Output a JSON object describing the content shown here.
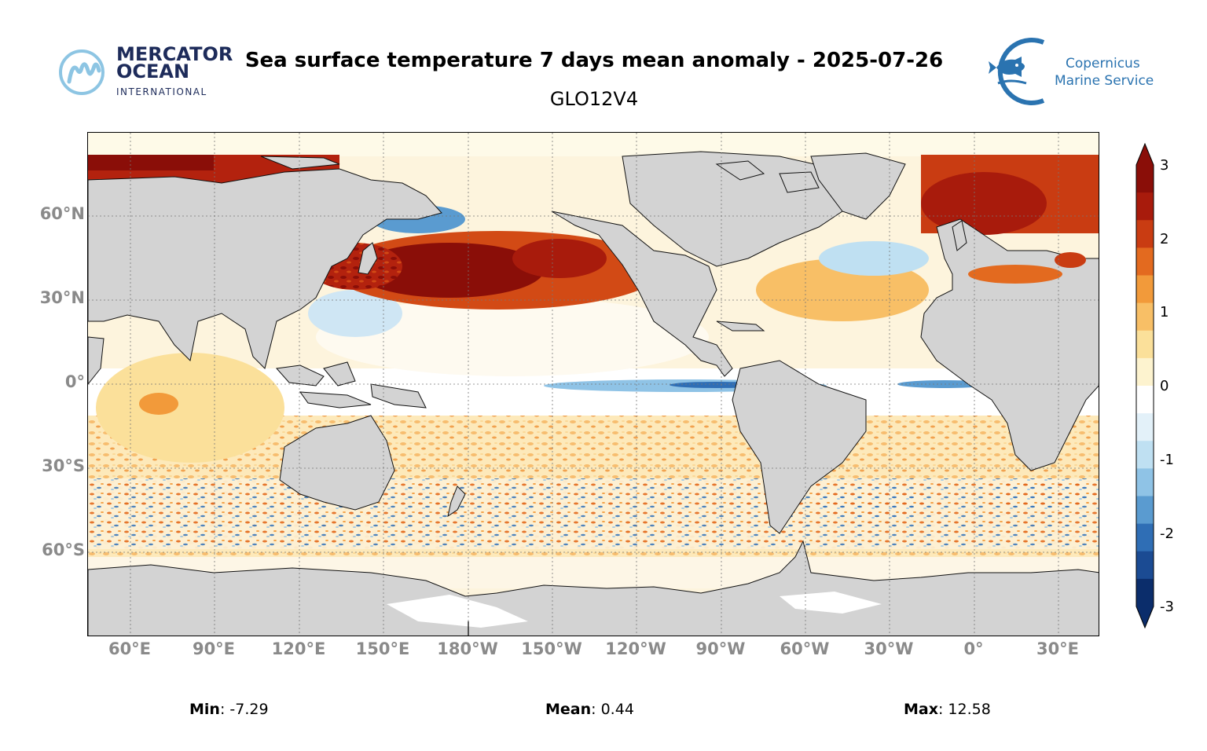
{
  "header": {
    "title": "Sea surface temperature 7 days mean anomaly - 2025-07-26",
    "subtitle": "GLO12V4",
    "left_logo": {
      "line1": "MERCATOR",
      "line2": "OCEAN",
      "line3": "INTERNATIONAL",
      "icon": "mercator-m-icon",
      "color": "#1d2b5a"
    },
    "right_logo": {
      "line1": "Copernicus",
      "line2": "Marine Service",
      "icon": "fish-icon",
      "color": "#2a73b0"
    }
  },
  "map": {
    "projection": "plate-carree",
    "central_longitude": "180°",
    "land_color": "#d3d3d3",
    "gridlines": "dashed",
    "y_ticks": [
      "60°N",
      "30°N",
      "0°",
      "30°S",
      "60°S"
    ],
    "x_ticks": [
      "60°E",
      "90°E",
      "120°E",
      "150°E",
      "180°W",
      "150°W",
      "120°W",
      "90°W",
      "60°W",
      "30°W",
      "0°",
      "30°E"
    ]
  },
  "colorbar": {
    "ticks": [
      "3",
      "2",
      "1",
      "0",
      "-1",
      "-2",
      "-3"
    ],
    "range": [
      -3,
      3
    ],
    "extend": "both",
    "colormap": "RdYlBu_r",
    "colors": [
      "#0b2d6b",
      "#1b4b93",
      "#2f6eb5",
      "#5a9bd0",
      "#8fc3e6",
      "#bfe0f2",
      "#e3f1f9",
      "#ffffff",
      "#fdf3cf",
      "#fbe09a",
      "#f8bf66",
      "#f29a3a",
      "#e36a1f",
      "#c93c12",
      "#a81b0c",
      "#8a0e08"
    ]
  },
  "stats": {
    "min_label": "Min",
    "min_value": ": -7.29",
    "mean_label": "Mean",
    "mean_value": ": 0.44",
    "max_label": "Max",
    "max_value": ": 12.58"
  }
}
